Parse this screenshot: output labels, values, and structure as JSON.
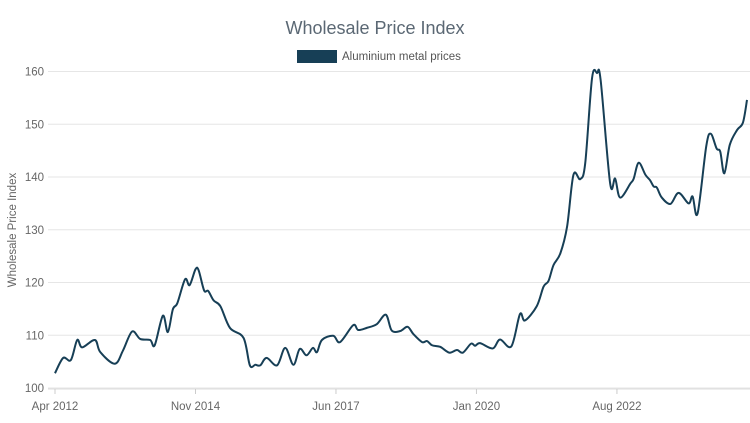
{
  "chart_data": {
    "type": "line",
    "title": "Wholesale Price Index",
    "xlabel": "",
    "ylabel": "Wholesale Price Index",
    "ylim": [
      100,
      160
    ],
    "yticks": [
      100,
      110,
      120,
      130,
      140,
      150,
      160
    ],
    "x_unit": "months since Apr 2012",
    "xlim": [
      0,
      152.7
    ],
    "xticks": [
      {
        "x": 0,
        "label": "Apr 2012"
      },
      {
        "x": 31,
        "label": "Nov 2014"
      },
      {
        "x": 62,
        "label": "Jun 2017"
      },
      {
        "x": 93,
        "label": "Jan 2020"
      },
      {
        "x": 124,
        "label": "Aug 2022"
      }
    ],
    "grid": true,
    "legend": {
      "placement": "top-center",
      "entries": [
        "Aluminium metal prices"
      ]
    },
    "series": [
      {
        "name": "Aluminium metal prices",
        "color": "#173f56",
        "points": [
          [
            0,
            102.8
          ],
          [
            1.8,
            105.7
          ],
          [
            3.5,
            105.3
          ],
          [
            4.9,
            109.1
          ],
          [
            6,
            107.7
          ],
          [
            8.8,
            109.1
          ],
          [
            10,
            106.8
          ],
          [
            13.2,
            104.6
          ],
          [
            15,
            107.1
          ],
          [
            17,
            110.7
          ],
          [
            18.8,
            109.3
          ],
          [
            21,
            109.1
          ],
          [
            22,
            108.1
          ],
          [
            23.8,
            113.7
          ],
          [
            24.9,
            110.6
          ],
          [
            26,
            114.9
          ],
          [
            27,
            116.1
          ],
          [
            28.7,
            120.6
          ],
          [
            29.7,
            119.5
          ],
          [
            31,
            122.5
          ],
          [
            31.7,
            122.3
          ],
          [
            32.9,
            118.5
          ],
          [
            33.8,
            118.4
          ],
          [
            35,
            116.6
          ],
          [
            36.5,
            115.5
          ],
          [
            38.6,
            111.4
          ],
          [
            41.6,
            109.5
          ],
          [
            43,
            104.3
          ],
          [
            44.2,
            104.4
          ],
          [
            45.3,
            104.3
          ],
          [
            46.7,
            105.7
          ],
          [
            49,
            104.3
          ],
          [
            50.8,
            107.6
          ],
          [
            52.6,
            104.4
          ],
          [
            54,
            107.4
          ],
          [
            55.5,
            106.2
          ],
          [
            56.9,
            107.6
          ],
          [
            57.8,
            106.8
          ],
          [
            58.9,
            109.1
          ],
          [
            61.4,
            109.9
          ],
          [
            62.9,
            108.7
          ],
          [
            65.8,
            111.9
          ],
          [
            66.9,
            111.0
          ],
          [
            68.8,
            111.4
          ],
          [
            71,
            112.1
          ],
          [
            73,
            113.9
          ],
          [
            74.3,
            110.9
          ],
          [
            76.2,
            110.8
          ],
          [
            77.8,
            111.6
          ],
          [
            79.1,
            110.2
          ],
          [
            81,
            108.7
          ],
          [
            82.1,
            108.9
          ],
          [
            83.2,
            108.1
          ],
          [
            85,
            107.8
          ],
          [
            87,
            106.7
          ],
          [
            88.7,
            107.2
          ],
          [
            90,
            106.7
          ],
          [
            91.8,
            108.4
          ],
          [
            92.7,
            108.0
          ],
          [
            93.8,
            108.5
          ],
          [
            96.6,
            107.5
          ],
          [
            98.2,
            109.2
          ],
          [
            100.7,
            107.9
          ],
          [
            102.6,
            114.0
          ],
          [
            103.7,
            112.8
          ],
          [
            106.3,
            115.5
          ],
          [
            107.8,
            119.2
          ],
          [
            108.9,
            120.3
          ],
          [
            110,
            123.3
          ],
          [
            111.5,
            125.5
          ],
          [
            113,
            130.6
          ],
          [
            114.4,
            140.4
          ],
          [
            115.9,
            139.6
          ],
          [
            117,
            142.6
          ],
          [
            118.5,
            158.7
          ],
          [
            119.6,
            159.7
          ],
          [
            120.4,
            158.4
          ],
          [
            122.5,
            138.8
          ],
          [
            123.6,
            139.7
          ],
          [
            124.7,
            136.1
          ],
          [
            127,
            138.8
          ],
          [
            127.7,
            139.7
          ],
          [
            128.8,
            142.7
          ],
          [
            130.3,
            140.4
          ],
          [
            131.3,
            139.4
          ],
          [
            132.1,
            138.2
          ],
          [
            132.8,
            138.0
          ],
          [
            133.9,
            136.1
          ],
          [
            135.8,
            134.9
          ],
          [
            137.6,
            137.0
          ],
          [
            139.8,
            135.0
          ],
          [
            140.7,
            136.3
          ],
          [
            141.8,
            133.1
          ],
          [
            143.7,
            145.8
          ],
          [
            144.7,
            148.2
          ],
          [
            146,
            145.4
          ],
          [
            146.8,
            144.8
          ],
          [
            147.7,
            140.7
          ],
          [
            148.9,
            146.1
          ],
          [
            150.5,
            148.9
          ],
          [
            151.8,
            150.3
          ],
          [
            152.7,
            154.6
          ]
        ]
      }
    ]
  }
}
